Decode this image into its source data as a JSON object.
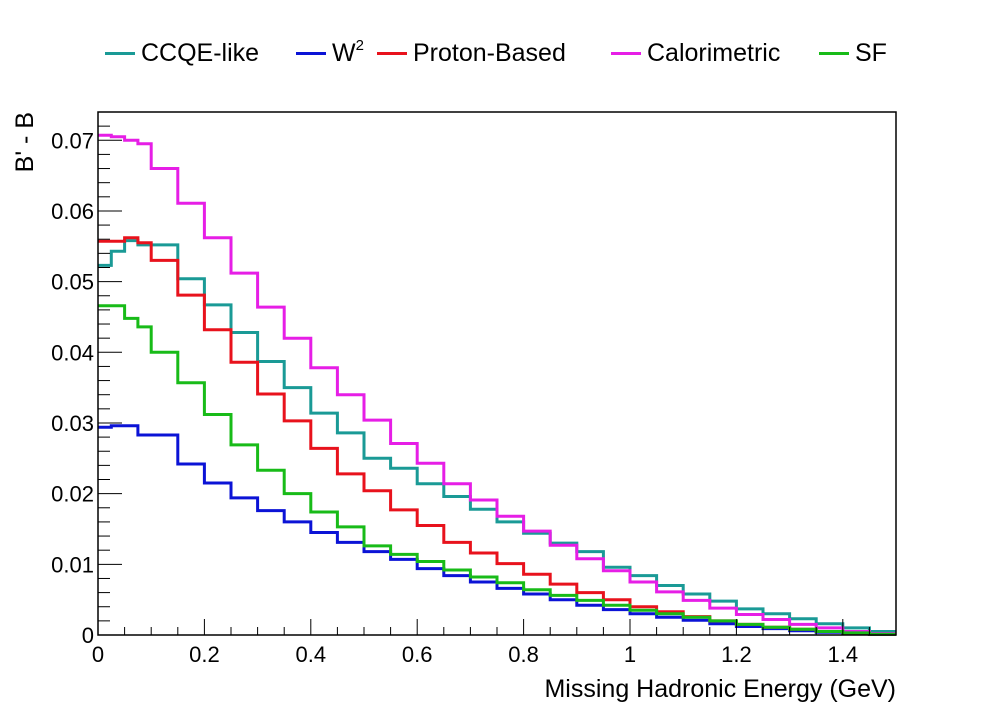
{
  "chart_data": {
    "type": "line",
    "title": "",
    "xlabel": "Missing Hadronic Energy (GeV)",
    "ylabel": "B' - B",
    "xlim": [
      0,
      1.5
    ],
    "ylim": [
      0,
      0.074
    ],
    "xticks": [
      0,
      0.2,
      0.4,
      0.6,
      0.8,
      1,
      1.2,
      1.4
    ],
    "xtick_labels": [
      "0",
      "0.2",
      "0.4",
      "0.6",
      "0.8",
      "1",
      "1.2",
      "1.4"
    ],
    "yticks": [
      0,
      0.01,
      0.02,
      0.03,
      0.04,
      0.05,
      0.06,
      0.07
    ],
    "ytick_labels": [
      "0",
      "0.01",
      "0.02",
      "0.03",
      "0.04",
      "0.05",
      "0.06",
      "0.07"
    ],
    "grid": false,
    "legend_position": "top",
    "bin_edges": [
      0,
      0.025,
      0.05,
      0.075,
      0.1,
      0.15,
      0.2,
      0.25,
      0.3,
      0.35,
      0.4,
      0.45,
      0.5,
      0.55,
      0.6,
      0.65,
      0.7,
      0.75,
      0.8,
      0.85,
      0.9,
      0.95,
      1.0,
      1.05,
      1.1,
      1.15,
      1.2,
      1.25,
      1.3,
      1.35,
      1.4,
      1.45,
      1.5
    ],
    "series": [
      {
        "name": "CCQE-like",
        "color": "#1a9a96",
        "values": [
          0.0523,
          0.0543,
          0.0558,
          0.0552,
          0.0552,
          0.0504,
          0.0467,
          0.0428,
          0.0387,
          0.035,
          0.0314,
          0.0286,
          0.025,
          0.0236,
          0.0214,
          0.0196,
          0.0178,
          0.016,
          0.0144,
          0.013,
          0.0118,
          0.0096,
          0.0084,
          0.007,
          0.0058,
          0.0048,
          0.0037,
          0.003,
          0.0023,
          0.0016,
          0.001,
          0.0005
        ]
      },
      {
        "name": "W",
        "name_superscript": "2",
        "color": "#0b13d6",
        "values": [
          0.0294,
          0.0296,
          0.0296,
          0.0283,
          0.0283,
          0.0242,
          0.0215,
          0.0194,
          0.0176,
          0.016,
          0.0145,
          0.0131,
          0.0118,
          0.0107,
          0.0094,
          0.0084,
          0.0075,
          0.0066,
          0.0058,
          0.005,
          0.0042,
          0.0036,
          0.003,
          0.0025,
          0.0021,
          0.0016,
          0.0012,
          0.0009,
          0.0006,
          0.0004,
          0.0002,
          0.0001
        ]
      },
      {
        "name": "Proton-Based",
        "color": "#e8121c",
        "values": [
          0.0557,
          0.0557,
          0.0562,
          0.0555,
          0.053,
          0.0481,
          0.0432,
          0.0386,
          0.0341,
          0.0303,
          0.0264,
          0.0228,
          0.0204,
          0.0177,
          0.0155,
          0.0131,
          0.0116,
          0.0101,
          0.0086,
          0.0072,
          0.006,
          0.005,
          0.004,
          0.0033,
          0.0026,
          0.002,
          0.0015,
          0.0011,
          0.0008,
          0.0005,
          0.0003,
          0.0001
        ]
      },
      {
        "name": "Calorimetric",
        "color": "#e61ee6",
        "values": [
          0.0707,
          0.0705,
          0.07,
          0.0695,
          0.066,
          0.0611,
          0.0562,
          0.0512,
          0.0464,
          0.042,
          0.0378,
          0.034,
          0.0304,
          0.0271,
          0.0243,
          0.0214,
          0.0191,
          0.0168,
          0.0147,
          0.0127,
          0.0108,
          0.0091,
          0.0075,
          0.0061,
          0.0049,
          0.0038,
          0.0029,
          0.0022,
          0.0015,
          0.001,
          0.0005,
          0.0002
        ]
      },
      {
        "name": "SF",
        "color": "#18bb18",
        "values": [
          0.0466,
          0.0466,
          0.0448,
          0.0436,
          0.04,
          0.0357,
          0.0312,
          0.0269,
          0.0233,
          0.02,
          0.0174,
          0.0153,
          0.0126,
          0.0114,
          0.0104,
          0.0092,
          0.0082,
          0.0074,
          0.0064,
          0.0056,
          0.0049,
          0.0042,
          0.0035,
          0.003,
          0.0025,
          0.002,
          0.0015,
          0.0011,
          0.0008,
          0.0005,
          0.0003,
          0.0001
        ]
      }
    ]
  }
}
